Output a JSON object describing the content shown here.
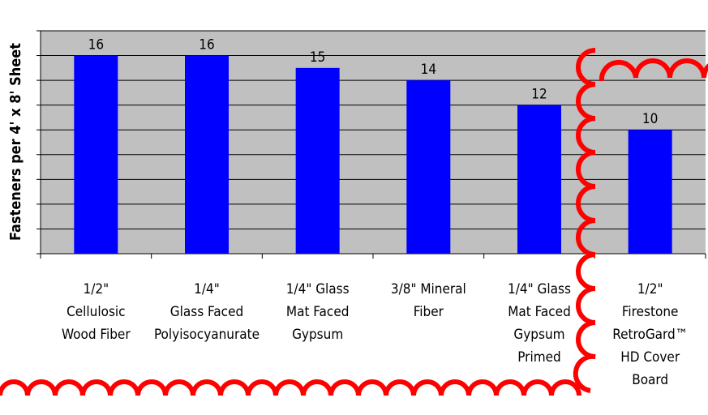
{
  "chart_data": {
    "type": "bar",
    "y_label": "Fasteners per 4' x 8' Sheet",
    "categories": [
      [
        "1/2\"",
        "Cellulosic",
        "Wood Fiber"
      ],
      [
        "1/4\"",
        "Glass Faced",
        "Polyisocyanurate"
      ],
      [
        "1/4\" Glass",
        "Mat Faced",
        "Gypsum"
      ],
      [
        "3/8\" Mineral",
        "Fiber"
      ],
      [
        "1/4\" Glass",
        "Mat Faced",
        "Gypsum",
        "Primed"
      ],
      [
        "1/2\"",
        "Firestone",
        "RetroGard™",
        "HD Cover",
        "Board"
      ]
    ],
    "values": [
      16,
      16,
      15,
      14,
      12,
      10
    ],
    "color": "#0000ff",
    "ylim": [
      0,
      18
    ],
    "yticks": [
      0,
      2,
      4,
      6,
      8,
      10,
      12,
      14,
      16,
      18
    ],
    "grid": true
  }
}
